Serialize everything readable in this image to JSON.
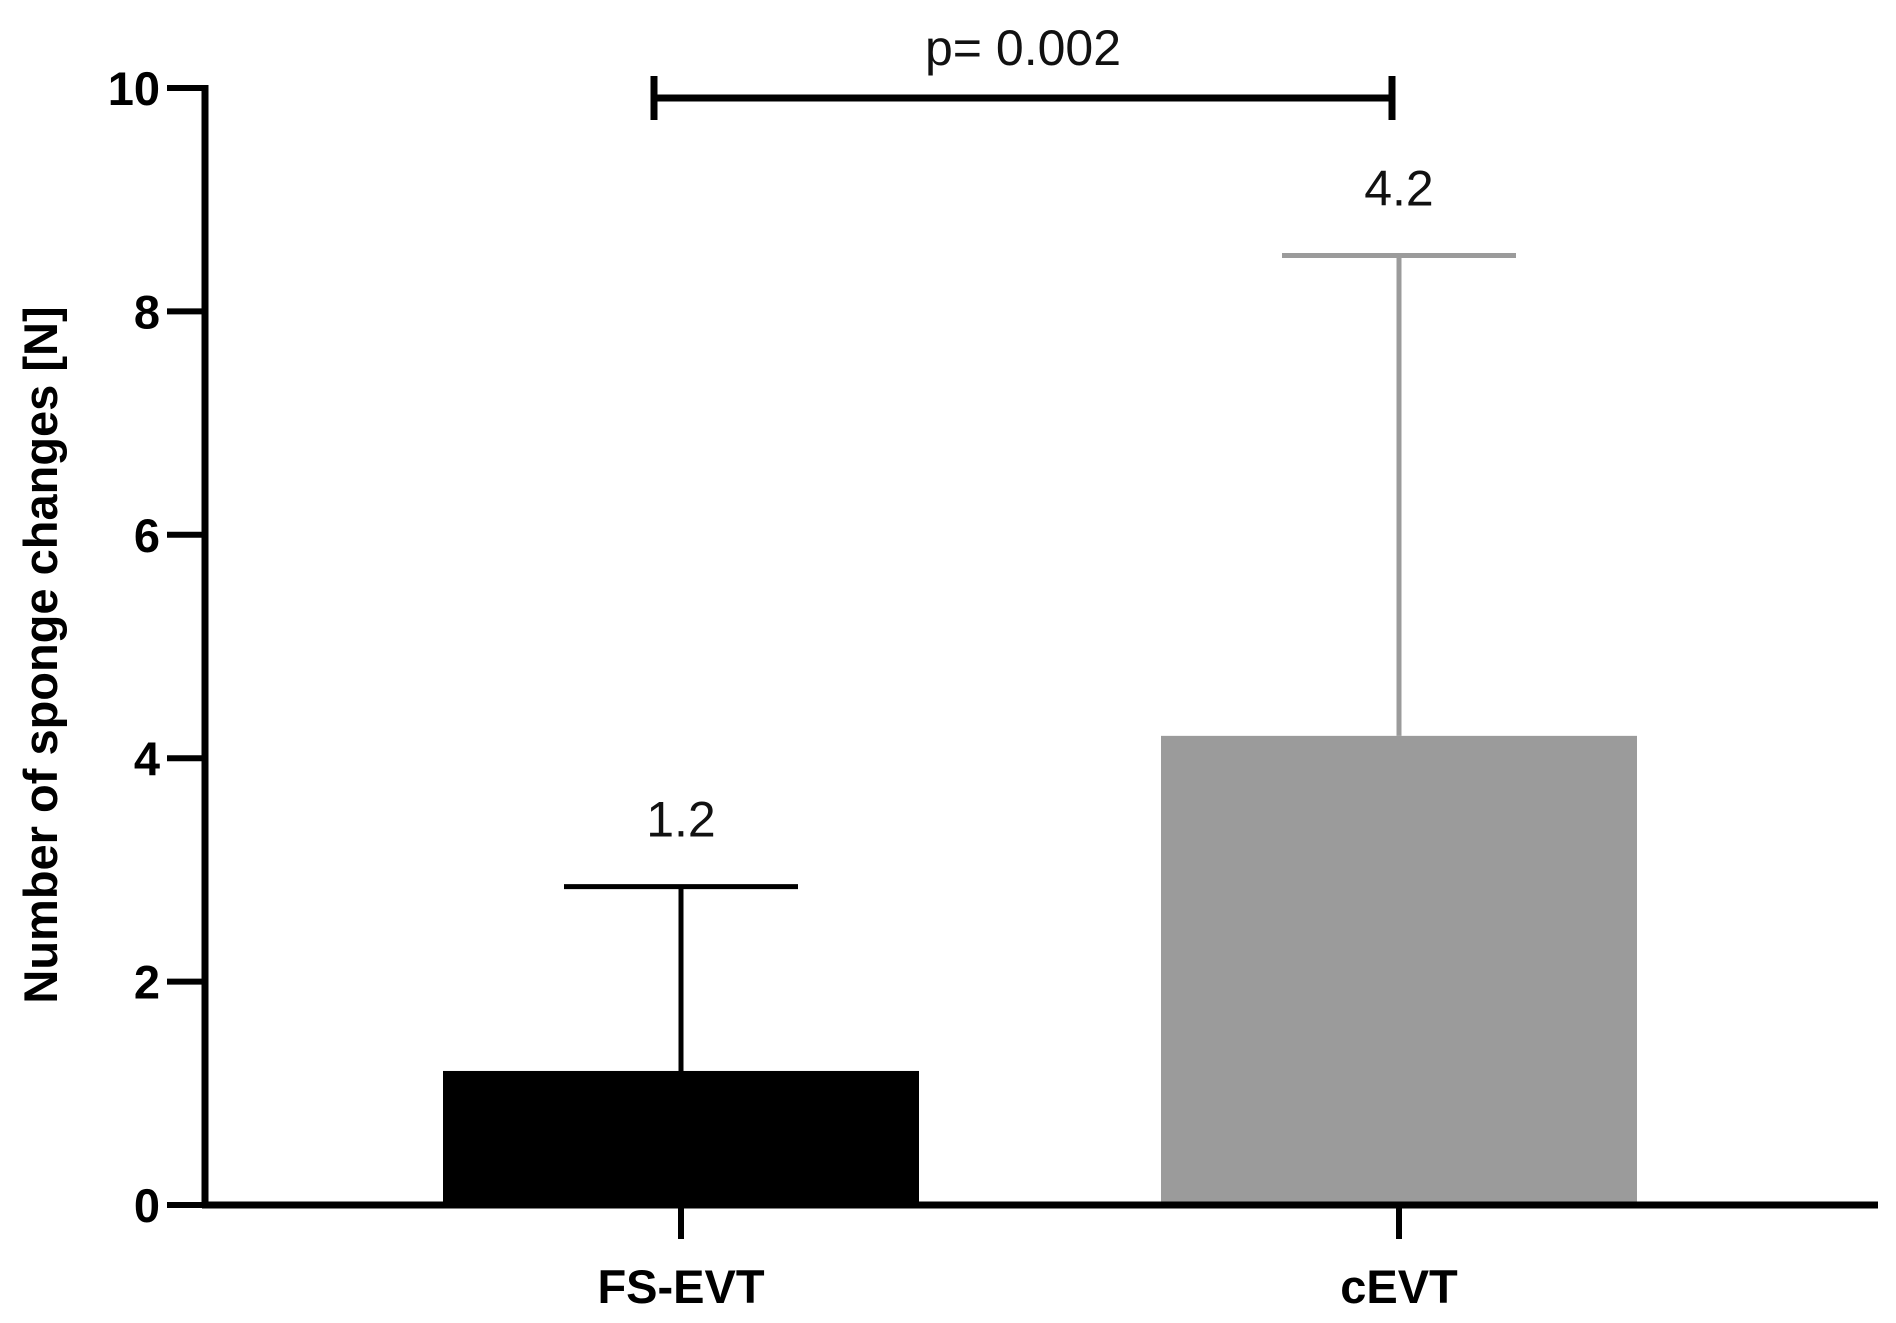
{
  "chart_data": {
    "type": "bar",
    "categories": [
      "FS-EVT",
      "cEVT"
    ],
    "values": [
      1.2,
      4.2
    ],
    "error_upper": [
      2.85,
      8.5
    ],
    "data_labels": [
      "1.2",
      "4.2"
    ],
    "bar_colors": [
      "#000000",
      "#9b9b9b"
    ],
    "ylabel": "Number of sponge changes [N]",
    "xlabel": "",
    "ylim": [
      0,
      10
    ],
    "yticks": [
      "0",
      "2",
      "4",
      "6",
      "8",
      "10"
    ],
    "grid": false,
    "annotation": {
      "text": "p= 0.002",
      "between": [
        "FS-EVT",
        "cEVT"
      ]
    }
  }
}
